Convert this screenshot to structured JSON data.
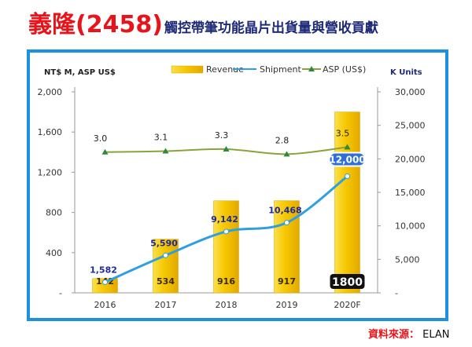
{
  "title": {
    "company": "義隆(2458)",
    "subtitle": "觸控帶筆功能晶片出貨量與營收貢獻"
  },
  "source": {
    "label": "資料來源：",
    "value": "ELAN"
  },
  "colors": {
    "revenue": "#f6c700",
    "shipment": "#2f9fe0",
    "asp": "#8aa33a",
    "frame": "#1f8fe0",
    "title_red": "#e8141b",
    "title_navy": "#1e2a78"
  },
  "chart_data": {
    "type": "bar",
    "left_axis_title": "NT$ M, ASP US$",
    "right_axis_title": "K Units",
    "categories": [
      "2016",
      "2017",
      "2018",
      "2019",
      "2020F"
    ],
    "series": [
      {
        "name": "Revenue",
        "type": "bar",
        "axis": "left",
        "values": [
          142,
          534,
          916,
          917,
          1800
        ],
        "labels": [
          "142",
          "534",
          "916",
          "917",
          "1800"
        ]
      },
      {
        "name": "Shipment",
        "type": "line",
        "axis": "right",
        "values": [
          1582,
          5590,
          9142,
          10468,
          12000
        ],
        "labels": [
          "1,582",
          "5,590",
          "9,142",
          "10,468",
          "12,000"
        ]
      },
      {
        "name": "ASP (US$)",
        "type": "line",
        "axis": "left",
        "values": [
          3.0,
          3.1,
          3.3,
          2.8,
          3.5
        ],
        "labels": [
          "3.0",
          "3.1",
          "3.3",
          "2.8",
          "3.5"
        ]
      }
    ],
    "left_ticks": [
      "2,000",
      "1,600",
      "1,200",
      "800",
      "400",
      "-"
    ],
    "right_ticks": [
      "30,000",
      "25,000",
      "20,000",
      "15,000",
      "10,000",
      "5,000",
      "-"
    ],
    "ylim_left": [
      0,
      2000
    ],
    "ylim_right": [
      0,
      30000
    ],
    "legend_position": "top-center",
    "grid": false
  }
}
